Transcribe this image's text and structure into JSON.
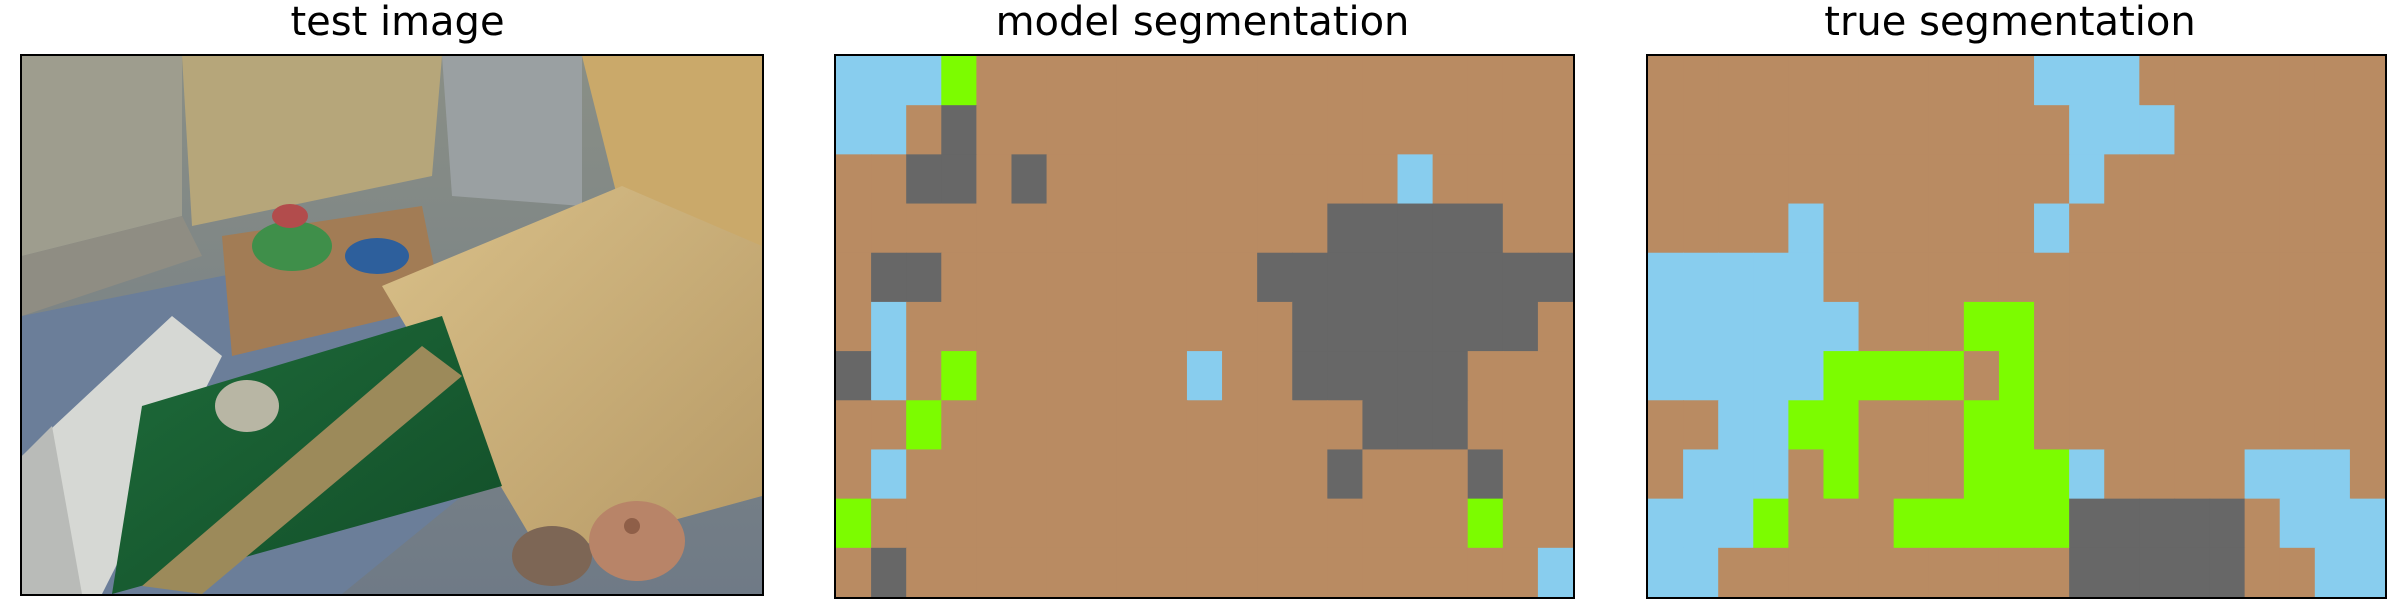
{
  "titles": {
    "test": "test image",
    "model": "model segmentation",
    "true": "true segmentation"
  },
  "colors": {
    "tan": "#b98b62",
    "grey": "#676767",
    "blue": "#88cdee",
    "green": "#7cfc00"
  },
  "segmentation_grids": {
    "model": [
      "BBBGTTTTTTTTTTTTTTTTT",
      "BBTDTTTTTTTTTTTTTTTTT",
      "TTDDTDTTTTTTTTTTBTTTT",
      "TTTTTTTTTTTTTTDDDDDTT",
      "TDDTTTTTTTTTDDDDDDDDD",
      "TBTTTTTTTTTTTDDDDDDDT",
      "DBTGTTTTTTBTTDDDDDTTT",
      "TTGTTTTTTTTTTTTDDDTTT",
      "TBTTTTTTTTTTTTDTTTDTT",
      "GTTTTTTTTTTTTTTTTTGTT",
      "TDTTTTTTTTTTTTTTTTTTB"
    ],
    "true": [
      "TTTTTTTTTTTBBBTTTTTTT",
      "TTTTTTTTTTTTBBBTTTTTT",
      "TTTTTTTTTTTTBTTTTTTTT",
      "TTTTBTTTTTTBTTTTTTTTT",
      "BBBBBTTTTTTTTTTTTTTTT",
      "BBBBBBTTTGGTTTTTTTTTT",
      "BBBBBGGGGTGTTTTTTTTTT",
      "TTBBGGTTTGGTTTTTTTTTT",
      "TBBBTGTTTGGGBTTTTBBBT",
      "BBBGTTTGGGGGDDDDDTBBB",
      "BBTTTTTTTTTTDDDDDTTBB"
    ]
  }
}
